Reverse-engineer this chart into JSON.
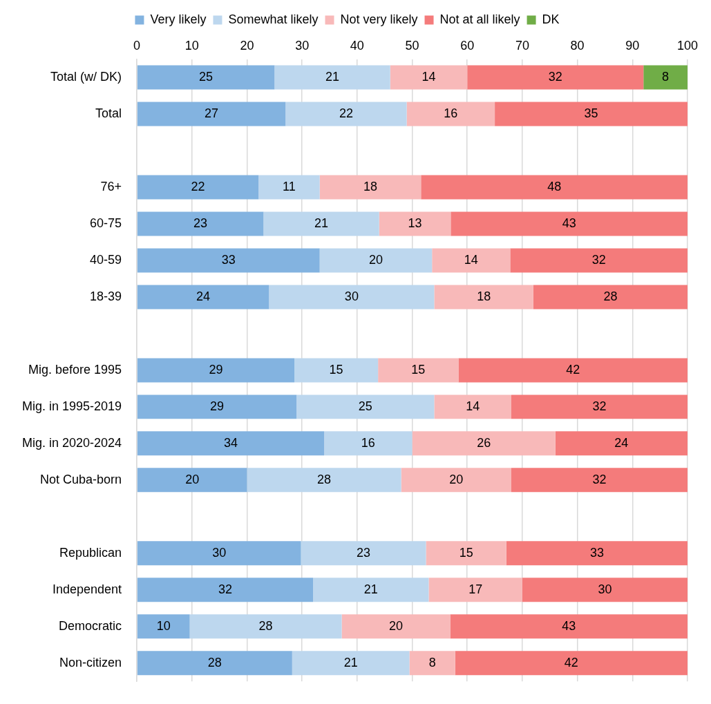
{
  "chart_data": {
    "type": "bar",
    "orientation": "horizontal",
    "stacked": true,
    "categories": [
      "Total (w/ DK)",
      "Total",
      null,
      "76+",
      "60-75",
      "40-59",
      "18-39",
      null,
      "Mig. before 1995",
      "Mig. in 1995-2019",
      "Mig. in 2020-2024",
      "Not Cuba-born",
      null,
      "Republican",
      "Independent",
      "Democratic",
      "Non-citizen"
    ],
    "series": [
      {
        "name": "Very likely",
        "color": "#83b3e0",
        "values": [
          25,
          27,
          null,
          22.1,
          23,
          33.2,
          24,
          null,
          28.6,
          29,
          34,
          20,
          null,
          29.8,
          32,
          9.6,
          28.2
        ],
        "value_labels": [
          "25",
          "27",
          null,
          "22",
          "23",
          "33",
          "24",
          null,
          "29",
          "29",
          "34",
          "20",
          null,
          "30",
          "32",
          "10",
          "28"
        ]
      },
      {
        "name": "Somewhat likely",
        "color": "#bdd7ee",
        "values": [
          21,
          22,
          null,
          11.1,
          21,
          20.4,
          30,
          null,
          15.2,
          25,
          16,
          28,
          null,
          22.7,
          21,
          27.6,
          21.3
        ],
        "value_labels": [
          "21",
          "22",
          null,
          "11",
          "21",
          "20",
          "30",
          null,
          "15",
          "25",
          "16",
          "28",
          null,
          "23",
          "21",
          "28",
          "21"
        ]
      },
      {
        "name": "Not very likely",
        "color": "#f8b9b9",
        "values": [
          14,
          16,
          null,
          18.4,
          13,
          14.2,
          18,
          null,
          14.6,
          14,
          26,
          20,
          null,
          14.6,
          17,
          19.7,
          8.3
        ],
        "value_labels": [
          "14",
          "16",
          null,
          "18",
          "13",
          "14",
          "18",
          null,
          "15",
          "14",
          "26",
          "20",
          null,
          "15",
          "17",
          "20",
          "8"
        ]
      },
      {
        "name": "Not at all likely",
        "color": "#f47b7b",
        "values": [
          32,
          35,
          null,
          48.4,
          43,
          32.2,
          28,
          null,
          41.6,
          32,
          24,
          32,
          null,
          32.9,
          30,
          43.1,
          42.2
        ],
        "value_labels": [
          "32",
          "35",
          null,
          "48",
          "43",
          "32",
          "28",
          null,
          "42",
          "32",
          "24",
          "32",
          null,
          "33",
          "30",
          "43",
          "42"
        ]
      },
      {
        "name": "DK",
        "color": "#70ad47",
        "values": [
          8,
          null,
          null,
          null,
          null,
          null,
          null,
          null,
          null,
          null,
          null,
          null,
          null,
          null,
          null,
          null,
          null
        ],
        "value_labels": [
          "8",
          null,
          null,
          null,
          null,
          null,
          null,
          null,
          null,
          null,
          null,
          null,
          null,
          null,
          null,
          null,
          null
        ]
      }
    ],
    "xlim": [
      0,
      100
    ],
    "xticks": [
      0,
      10,
      20,
      30,
      40,
      50,
      60,
      70,
      80,
      90,
      100
    ],
    "grid": "x",
    "legend": "top"
  }
}
